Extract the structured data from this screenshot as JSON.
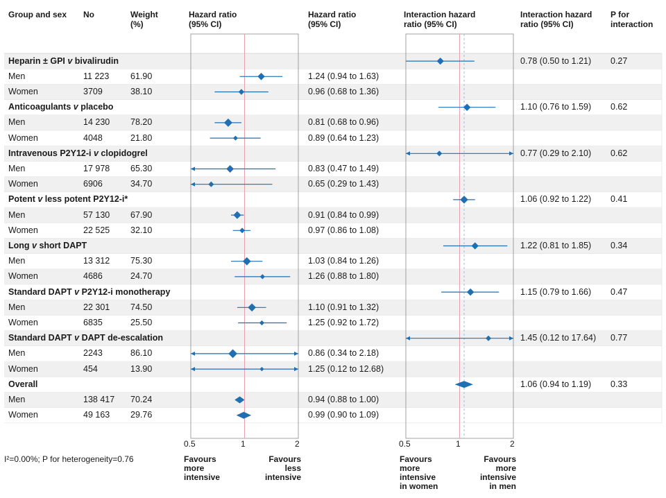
{
  "headers": {
    "group": "Group and sex",
    "no": "No",
    "weight": [
      "Weight",
      "(%)"
    ],
    "hr_plot": [
      "Hazard ratio",
      "(95% CI)"
    ],
    "hr_text": [
      "Hazard ratio",
      "(95% CI)"
    ],
    "ihr_plot": [
      "Interaction hazard",
      "ratio (95% CI)"
    ],
    "ihr_text": [
      "Interaction hazard",
      "ratio (95% CI)"
    ],
    "p": [
      "P for",
      "interaction"
    ]
  },
  "footnote": "I²=0.00%; P for heterogeneity=0.76",
  "favours": {
    "left1": [
      "Favours",
      "more",
      "intensive"
    ],
    "right1": [
      "Favours",
      "less",
      "intensive"
    ],
    "left2": [
      "Favours",
      "more",
      "intensive",
      "in women"
    ],
    "right2": [
      "Favours",
      "more",
      "intensive",
      "in men"
    ]
  },
  "chart_data": {
    "type": "forest",
    "title": "",
    "xlabel_left": "Hazard ratio (95% CI)",
    "xlabel_right": "Interaction hazard ratio (95% CI)",
    "x_scale": "log",
    "xlim": [
      0.5,
      2
    ],
    "ticks": [
      "0.5",
      "1",
      "2"
    ],
    "reference_line": 1,
    "groups": [
      {
        "name": "Heparin ± GPI v bivalirudin",
        "interaction": {
          "hr": 0.78,
          "lo": 0.5,
          "hi": 1.21,
          "text": "0.78 (0.50 to 1.21)",
          "p": "0.27"
        },
        "rows": [
          {
            "sex": "Men",
            "no": "11 223",
            "weight": "61.90",
            "hr": 1.24,
            "lo": 0.94,
            "hi": 1.63,
            "text": "1.24 (0.94 to 1.63)"
          },
          {
            "sex": "Women",
            "no": "3709",
            "weight": "38.10",
            "hr": 0.96,
            "lo": 0.68,
            "hi": 1.36,
            "text": "0.96 (0.68 to 1.36)"
          }
        ]
      },
      {
        "name": "Anticoagulants v placebo",
        "interaction": {
          "hr": 1.1,
          "lo": 0.76,
          "hi": 1.59,
          "text": "1.10 (0.76 to 1.59)",
          "p": "0.62"
        },
        "rows": [
          {
            "sex": "Men",
            "no": "14 230",
            "weight": "78.20",
            "hr": 0.81,
            "lo": 0.68,
            "hi": 0.96,
            "text": "0.81 (0.68 to 0.96)"
          },
          {
            "sex": "Women",
            "no": "4048",
            "weight": "21.80",
            "hr": 0.89,
            "lo": 0.64,
            "hi": 1.23,
            "text": "0.89 (0.64 to 1.23)"
          }
        ]
      },
      {
        "name": "Intravenous P2Y12-i v clopidogrel",
        "interaction": {
          "hr": 0.77,
          "lo": 0.29,
          "hi": 2.1,
          "text": "0.77 (0.29 to 2.10)",
          "p": "0.62"
        },
        "rows": [
          {
            "sex": "Men",
            "no": "17 978",
            "weight": "65.30",
            "hr": 0.83,
            "lo": 0.47,
            "hi": 1.49,
            "text": "0.83 (0.47 to 1.49)"
          },
          {
            "sex": "Women",
            "no": "6906",
            "weight": "34.70",
            "hr": 0.65,
            "lo": 0.29,
            "hi": 1.43,
            "text": "0.65 (0.29 to 1.43)"
          }
        ]
      },
      {
        "name": "Potent v less potent P2Y12-i*",
        "interaction": {
          "hr": 1.06,
          "lo": 0.92,
          "hi": 1.22,
          "text": "1.06 (0.92 to 1.22)",
          "p": "0.41"
        },
        "rows": [
          {
            "sex": "Men",
            "no": "57 130",
            "weight": "67.90",
            "hr": 0.91,
            "lo": 0.84,
            "hi": 0.99,
            "text": "0.91 (0.84 to 0.99)"
          },
          {
            "sex": "Women",
            "no": "22 525",
            "weight": "32.10",
            "hr": 0.97,
            "lo": 0.86,
            "hi": 1.08,
            "text": "0.97 (0.86 to 1.08)"
          }
        ]
      },
      {
        "name": "Long v short DAPT",
        "interaction": {
          "hr": 1.22,
          "lo": 0.81,
          "hi": 1.85,
          "text": "1.22 (0.81 to 1.85)",
          "p": "0.34"
        },
        "rows": [
          {
            "sex": "Men",
            "no": "13 312",
            "weight": "75.30",
            "hr": 1.03,
            "lo": 0.84,
            "hi": 1.26,
            "text": "1.03 (0.84 to 1.26)"
          },
          {
            "sex": "Women",
            "no": "4686",
            "weight": "24.70",
            "hr": 1.26,
            "lo": 0.88,
            "hi": 1.8,
            "text": "1.26 (0.88 to 1.80)"
          }
        ]
      },
      {
        "name": "Standard DAPT v P2Y12-i monotherapy",
        "interaction": {
          "hr": 1.15,
          "lo": 0.79,
          "hi": 1.66,
          "text": "1.15 (0.79 to 1.66)",
          "p": "0.47"
        },
        "rows": [
          {
            "sex": "Men",
            "no": "22 301",
            "weight": "74.50",
            "hr": 1.1,
            "lo": 0.91,
            "hi": 1.32,
            "text": "1.10 (0.91 to 1.32)"
          },
          {
            "sex": "Women",
            "no": "6835",
            "weight": "25.50",
            "hr": 1.25,
            "lo": 0.92,
            "hi": 1.72,
            "text": "1.25 (0.92 to 1.72)"
          }
        ]
      },
      {
        "name": "Standard DAPT v DAPT de-escalation",
        "interaction": {
          "hr": 1.45,
          "lo": 0.12,
          "hi": 17.64,
          "text": "1.45 (0.12 to 17.64)",
          "p": "0.77"
        },
        "rows": [
          {
            "sex": "Men",
            "no": "2243",
            "weight": "86.10",
            "hr": 0.86,
            "lo": 0.34,
            "hi": 2.18,
            "text": "0.86 (0.34 to 2.18)"
          },
          {
            "sex": "Women",
            "no": "454",
            "weight": "13.90",
            "hr": 1.25,
            "lo": 0.12,
            "hi": 12.68,
            "text": "1.25 (0.12 to 12.68)"
          }
        ]
      },
      {
        "name": "Overall",
        "overall": true,
        "interaction": {
          "hr": 1.06,
          "lo": 0.94,
          "hi": 1.19,
          "text": "1.06 (0.94 to 1.19)",
          "p": "0.33"
        },
        "rows": [
          {
            "sex": "Men",
            "no": "138 417",
            "weight": "70.24",
            "hr": 0.94,
            "lo": 0.88,
            "hi": 1.0,
            "text": "0.94 (0.88 to 1.00)"
          },
          {
            "sex": "Women",
            "no": "49 163",
            "weight": "29.76",
            "hr": 0.99,
            "lo": 0.9,
            "hi": 1.09,
            "text": "0.99 (0.90 to 1.09)"
          }
        ]
      }
    ]
  },
  "colors": {
    "marker": "#1f6fb2",
    "band": "#f0f0f0",
    "grid": "#d0d0d0",
    "ref_left": "#e8a0b0",
    "ref_right": "#e8a0b0",
    "ref_right_dash": "#a0b8e0"
  }
}
